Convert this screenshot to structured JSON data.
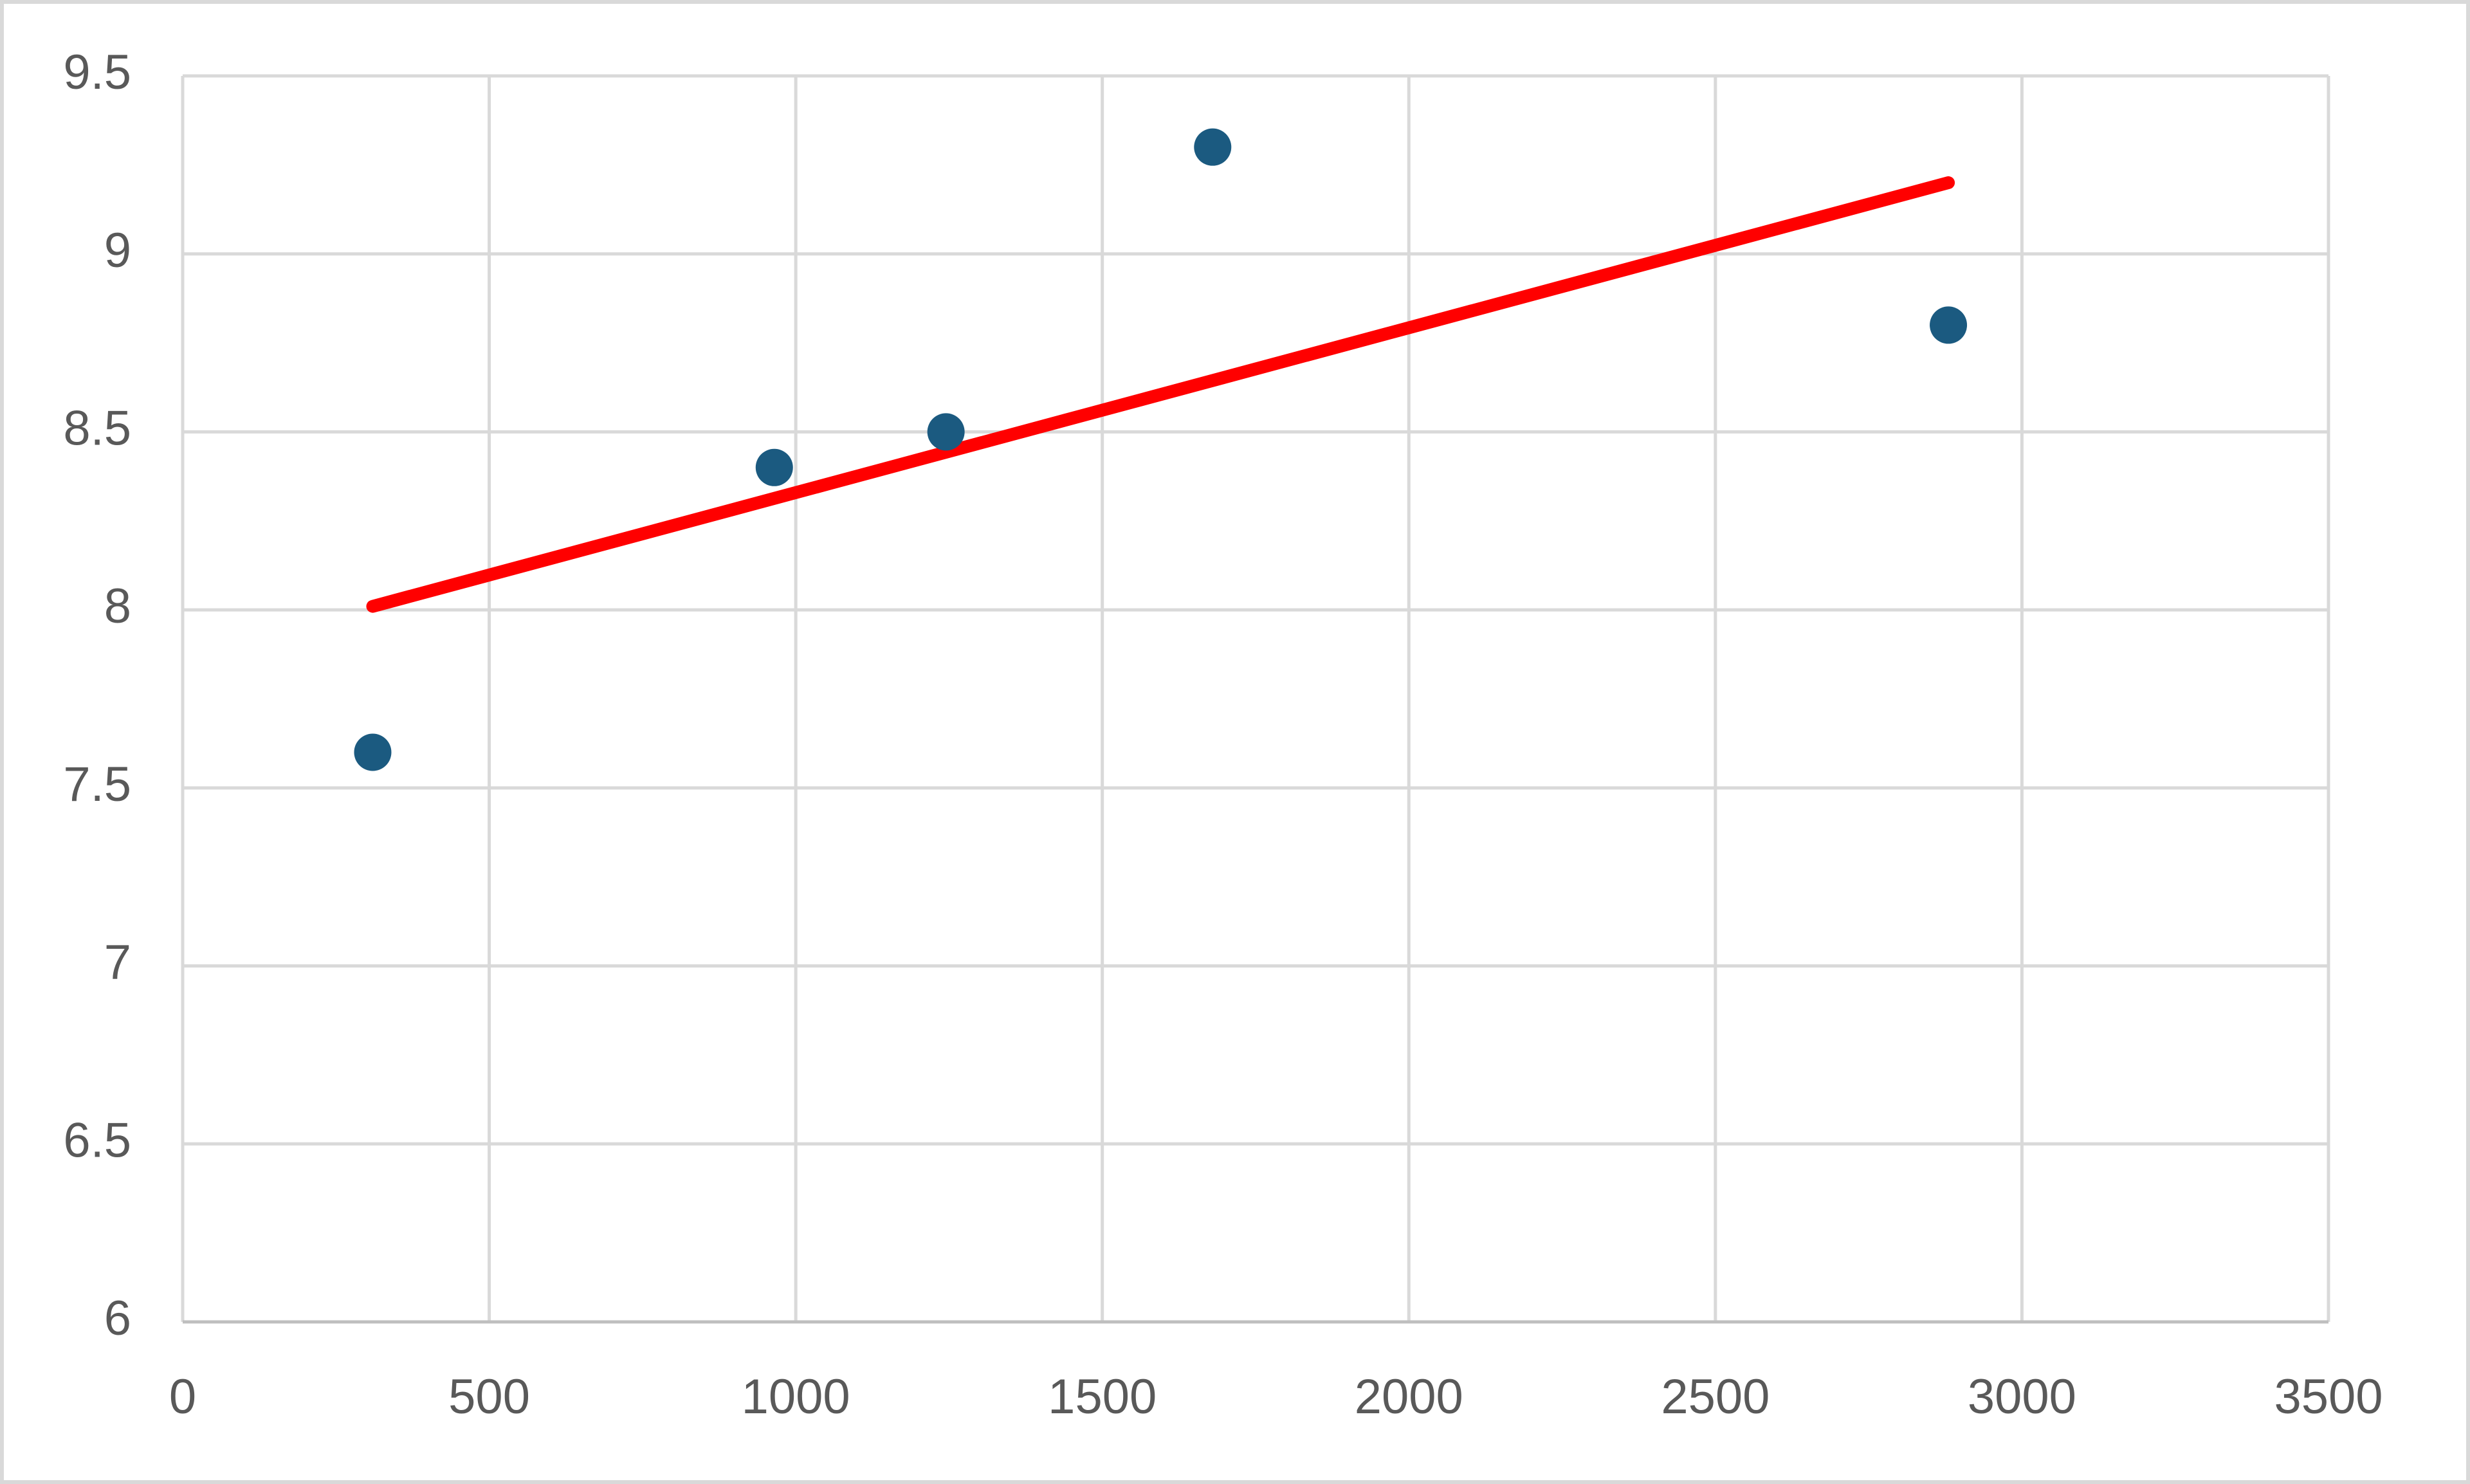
{
  "chart_data": {
    "type": "scatter",
    "series": [
      {
        "color": "#1b5a80",
        "x": [
          310,
          965,
          1245,
          1680,
          2880
        ],
        "values": [
          7.6,
          8.4,
          8.5,
          9.3,
          8.8
        ]
      }
    ],
    "trendline": {
      "color": "#ff0000",
      "x": [
        310,
        2880
      ],
      "values": [
        8.01,
        9.2
      ]
    },
    "xlim": [
      0,
      3500
    ],
    "xticks": [
      0,
      500,
      1000,
      1500,
      2000,
      2500,
      3000,
      3500
    ],
    "ylim": [
      6,
      9.5
    ],
    "yticks": [
      6,
      6.5,
      7,
      7.5,
      8,
      8.5,
      9,
      9.5
    ],
    "grid": true
  }
}
